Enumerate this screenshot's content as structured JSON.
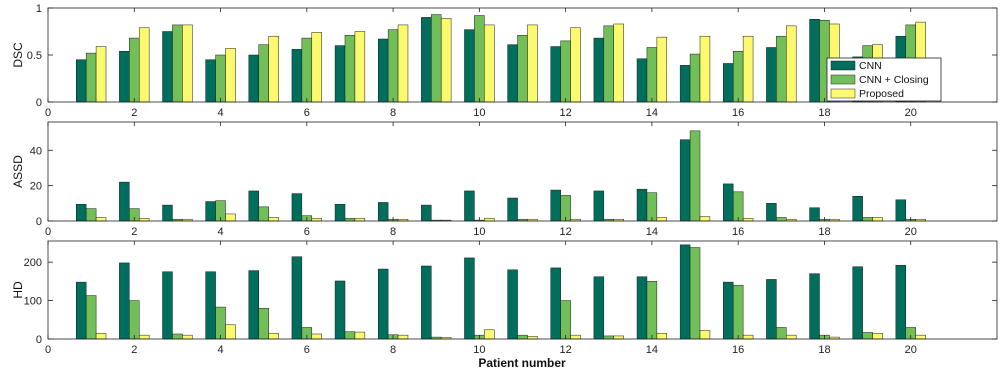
{
  "chart_data": {
    "type": "bar",
    "xlabel": "Patient number",
    "x": [
      1,
      2,
      3,
      4,
      5,
      6,
      7,
      8,
      9,
      10,
      11,
      12,
      13,
      14,
      15,
      16,
      17,
      18,
      19,
      20,
      21
    ],
    "xlim": [
      0,
      22
    ],
    "xticks": [
      0,
      2,
      4,
      6,
      8,
      10,
      12,
      14,
      16,
      18,
      20
    ],
    "legend": {
      "placement": "inside-right-of-top-panel",
      "entries": [
        "CNN",
        "CNN + Closing",
        "Proposed"
      ]
    },
    "series_colors": [
      "#006e5c",
      "#72bf5a",
      "#fbfa6f"
    ],
    "panels": [
      {
        "ylabel": "DSC",
        "ylim": [
          0,
          1
        ],
        "yticks": [
          0,
          0.5,
          1
        ],
        "ytick_labels": [
          "0",
          "0.5",
          "1"
        ],
        "series": [
          {
            "name": "CNN",
            "values": [
              0.45,
              0.54,
              0.75,
              0.45,
              0.5,
              0.56,
              0.6,
              0.67,
              0.9,
              0.77,
              0.61,
              0.59,
              0.68,
              0.46,
              0.39,
              0.41,
              0.58,
              0.88,
              0.48,
              0.7,
              0.0
            ]
          },
          {
            "name": "CNN + Closing",
            "values": [
              0.52,
              0.68,
              0.82,
              0.5,
              0.61,
              0.68,
              0.71,
              0.77,
              0.93,
              0.92,
              0.71,
              0.65,
              0.81,
              0.58,
              0.51,
              0.54,
              0.7,
              0.87,
              0.6,
              0.82,
              0.0
            ]
          },
          {
            "name": "Proposed",
            "values": [
              0.59,
              0.79,
              0.82,
              0.57,
              0.7,
              0.74,
              0.75,
              0.82,
              0.89,
              0.82,
              0.82,
              0.79,
              0.83,
              0.69,
              0.7,
              0.7,
              0.81,
              0.83,
              0.61,
              0.85,
              0.0
            ]
          }
        ]
      },
      {
        "ylabel": "ASSD",
        "ylim": [
          0,
          56
        ],
        "yticks": [
          0,
          20,
          40
        ],
        "ytick_labels": [
          "0",
          "20",
          "40"
        ],
        "series": [
          {
            "name": "CNN",
            "values": [
              9.5,
              22,
              9,
              11,
              17,
              15.5,
              9.5,
              10.5,
              9,
              17,
              13,
              17.5,
              17,
              18,
              46,
              21,
              10,
              7.5,
              14,
              12,
              0
            ]
          },
          {
            "name": "CNN + Closing",
            "values": [
              7,
              7,
              1,
              11.5,
              8,
              3,
              1.5,
              1,
              0.5,
              0.5,
              1,
              14.5,
              1,
              16,
              51,
              16.5,
              2,
              1,
              2,
              1,
              0
            ]
          },
          {
            "name": "Proposed",
            "values": [
              2,
              1.5,
              1,
              4,
              2,
              1.5,
              1.5,
              1,
              0.5,
              1.5,
              1,
              1,
              1,
              2,
              2.5,
              1.5,
              1,
              1,
              2,
              1,
              0
            ]
          }
        ]
      },
      {
        "ylabel": "HD",
        "ylim": [
          0,
          255
        ],
        "yticks": [
          0,
          100,
          200
        ],
        "ytick_labels": [
          "0",
          "100",
          "200"
        ],
        "series": [
          {
            "name": "CNN",
            "values": [
              148,
              198,
              175,
              175,
              178,
              214,
              151,
              182,
              190,
              211,
              180,
              185,
              162,
              162,
              245,
              148,
              155,
              170,
              188,
              192,
              0
            ]
          },
          {
            "name": "CNN + Closing",
            "values": [
              113,
              100,
              13,
              83,
              80,
              30,
              19,
              11,
              5,
              10,
              10,
              100,
              8,
              150,
              238,
              140,
              30,
              10,
              17,
              30,
              0
            ]
          },
          {
            "name": "Proposed",
            "values": [
              15,
              10,
              10,
              37,
              15,
              13,
              18,
              10,
              4,
              24,
              7,
              10,
              8,
              15,
              22,
              10,
              10,
              5,
              15,
              10,
              0
            ]
          }
        ]
      }
    ]
  }
}
